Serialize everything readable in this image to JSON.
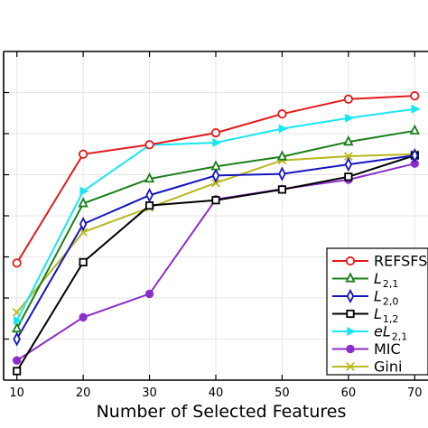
{
  "chart_data": {
    "type": "line",
    "xlabel": "Number of Selected Features",
    "ylabel": "",
    "title": "",
    "x": [
      10,
      20,
      30,
      40,
      50,
      60,
      70
    ],
    "xlim": [
      8,
      72
    ],
    "ylim": [
      0,
      8
    ],
    "y_tick_labels_visible": false,
    "grid": true,
    "legend_position": "lower-right",
    "series": [
      {
        "name": "REFSFS",
        "color": "#e31a1c",
        "marker": "circle-open",
        "values": [
          2.85,
          5.5,
          5.73,
          6.02,
          6.48,
          6.84,
          6.92
        ]
      },
      {
        "name": "L2,1",
        "color": "#1a7f1a",
        "marker": "triangle-up-open",
        "values": [
          1.25,
          4.3,
          4.9,
          5.2,
          5.44,
          5.8,
          6.07
        ]
      },
      {
        "name": "L2,0",
        "color": "#1515c0",
        "marker": "diamond-open",
        "values": [
          1.0,
          3.8,
          4.5,
          4.98,
          5.02,
          5.25,
          5.47
        ]
      },
      {
        "name": "L1,2",
        "color": "#000000",
        "marker": "square-open",
        "values": [
          0.22,
          2.87,
          4.25,
          4.38,
          4.64,
          4.95,
          5.47
        ]
      },
      {
        "name": "eL2,1",
        "color": "#19e6f0",
        "marker": "triangle-right",
        "values": [
          1.45,
          4.6,
          5.72,
          5.78,
          6.12,
          6.38,
          6.6
        ]
      },
      {
        "name": "MIC",
        "color": "#8b2fc9",
        "marker": "circle",
        "values": [
          0.48,
          1.53,
          2.1,
          4.4,
          4.65,
          4.88,
          5.27
        ]
      },
      {
        "name": "Gini",
        "color": "#b8b820",
        "marker": "x",
        "values": [
          1.65,
          3.6,
          4.2,
          4.8,
          5.35,
          5.45,
          5.5
        ]
      }
    ],
    "legend": [
      {
        "base": "REFSFS",
        "sub": ""
      },
      {
        "base": "L",
        "sub": "2,1"
      },
      {
        "base": "L",
        "sub": "2,0"
      },
      {
        "base": "L",
        "sub": "1,2"
      },
      {
        "base": "eL",
        "sub": "2,1"
      },
      {
        "base": "MIC",
        "sub": ""
      },
      {
        "base": "Gini",
        "sub": ""
      }
    ]
  }
}
